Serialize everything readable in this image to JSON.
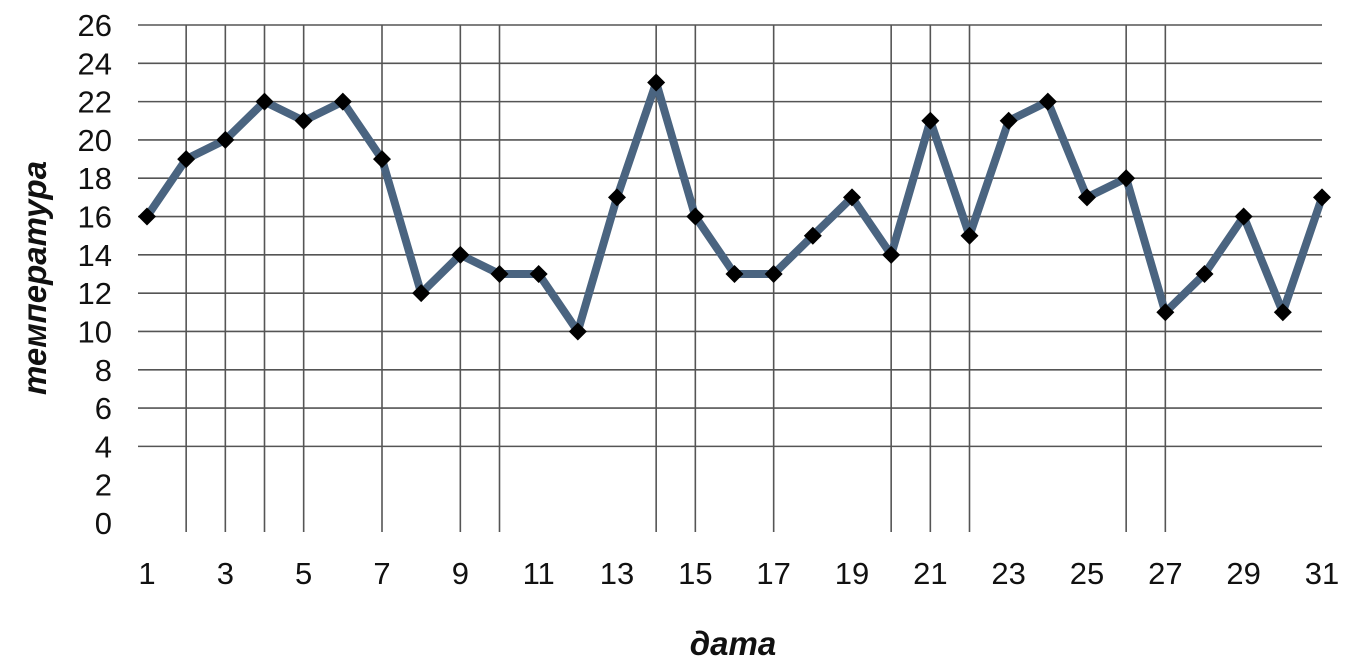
{
  "chart_data": {
    "type": "line",
    "title": "",
    "xlabel": "дата",
    "ylabel": "температура",
    "x": [
      1,
      2,
      3,
      4,
      5,
      6,
      7,
      8,
      9,
      10,
      11,
      12,
      13,
      14,
      15,
      16,
      17,
      18,
      19,
      20,
      21,
      22,
      23,
      24,
      25,
      26,
      27,
      28,
      29,
      30,
      31
    ],
    "xtick_labels": [
      "1",
      "3",
      "5",
      "7",
      "9",
      "11",
      "13",
      "15",
      "17",
      "19",
      "21",
      "23",
      "25",
      "27",
      "29",
      "31"
    ],
    "ylim": [
      0,
      26
    ],
    "yticks": [
      0,
      2,
      4,
      6,
      8,
      10,
      12,
      14,
      16,
      18,
      20,
      22,
      24,
      26
    ],
    "horizontal_grid_values": [
      4,
      6,
      8,
      10,
      12,
      14,
      16,
      18,
      20,
      22,
      24,
      26
    ],
    "vertical_grid_x": [
      2,
      3,
      4,
      5,
      7,
      9,
      10,
      14,
      15,
      17,
      20,
      21,
      22,
      26,
      27
    ],
    "series": [
      {
        "values": [
          16,
          19,
          20,
          22,
          21,
          22,
          19,
          12,
          14,
          13,
          13,
          10,
          17,
          23,
          16,
          13,
          13,
          15,
          17,
          14,
          21,
          15,
          21,
          22,
          17,
          18,
          11,
          13,
          16,
          11,
          17
        ],
        "color": "#4a6480",
        "marker": "diamond",
        "marker_color": "#000000"
      }
    ],
    "grid": true,
    "legend": "none"
  }
}
